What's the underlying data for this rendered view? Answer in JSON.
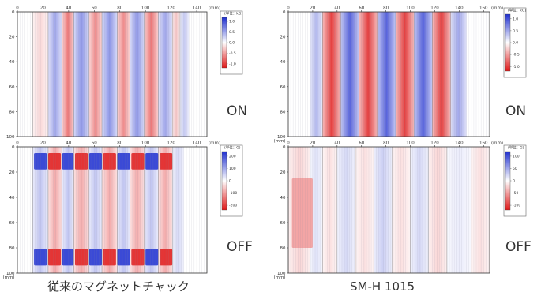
{
  "chart_data": [
    {
      "id": "conv-on",
      "type": "heatmap",
      "description": "stripe map, conventional chuck ON",
      "xticks": [
        0,
        20,
        40,
        60,
        80,
        100,
        120,
        140
      ],
      "x_unit_label": "(mm)",
      "yticks": [
        0,
        20,
        40,
        60,
        80,
        100
      ],
      "xlim": [
        0,
        148
      ],
      "ylim": [
        0,
        100
      ],
      "colorbar": {
        "title": "(単位：kG)",
        "ticks": [
          "1.0",
          "0.5",
          "0.0",
          "-0.5",
          "-1.0"
        ],
        "range": [
          -1.2,
          1.2
        ]
      },
      "stripes": [
        {
          "x0": 12,
          "x1": 24,
          "value": -0.2
        },
        {
          "x0": 24,
          "x1": 35,
          "value": 0.5
        },
        {
          "x0": 35,
          "x1": 44,
          "value": -0.7
        },
        {
          "x0": 44,
          "x1": 56,
          "value": 0.6
        },
        {
          "x0": 56,
          "x1": 66,
          "value": -0.6
        },
        {
          "x0": 66,
          "x1": 78,
          "value": 0.6
        },
        {
          "x0": 78,
          "x1": 88,
          "value": -0.6
        },
        {
          "x0": 88,
          "x1": 99,
          "value": 0.6
        },
        {
          "x0": 99,
          "x1": 110,
          "value": -0.7
        },
        {
          "x0": 110,
          "x1": 121,
          "value": 0.5
        },
        {
          "x0": 121,
          "x1": 127,
          "value": -0.3
        },
        {
          "x0": 127,
          "x1": 134,
          "value": 0.3
        }
      ],
      "patches": []
    },
    {
      "id": "smh-on",
      "type": "heatmap",
      "description": "stripe map, SM-H 1015 ON",
      "xticks": [
        0,
        20,
        40,
        60,
        80,
        100,
        120,
        140,
        160
      ],
      "x_unit_label": "(mm)",
      "yticks": [
        0,
        20,
        40,
        60,
        80,
        100
      ],
      "y_unit_label": "(mm)",
      "xlim": [
        0,
        165
      ],
      "ylim": [
        0,
        100
      ],
      "colorbar": {
        "title": "(単位：kG)",
        "ticks": [
          "1.0",
          "0.5",
          "0.0",
          "-0.5",
          "-1.0"
        ],
        "range": [
          -1.2,
          1.2
        ]
      },
      "stripes": [
        {
          "x0": 18,
          "x1": 28,
          "value": 0.4
        },
        {
          "x0": 28,
          "x1": 43,
          "value": -1.0
        },
        {
          "x0": 43,
          "x1": 58,
          "value": 0.9
        },
        {
          "x0": 58,
          "x1": 73,
          "value": -1.0
        },
        {
          "x0": 73,
          "x1": 88,
          "value": 0.9
        },
        {
          "x0": 88,
          "x1": 103,
          "value": -1.0
        },
        {
          "x0": 103,
          "x1": 118,
          "value": 0.9
        },
        {
          "x0": 118,
          "x1": 133,
          "value": -1.0
        },
        {
          "x0": 133,
          "x1": 146,
          "value": 0.5
        }
      ],
      "patches": []
    },
    {
      "id": "conv-off",
      "type": "heatmap",
      "description": "residual map, conventional chuck OFF",
      "xticks": [
        0,
        20,
        40,
        60,
        80,
        100,
        120,
        140
      ],
      "x_unit_label": "(mm)",
      "yticks": [
        0,
        20,
        40,
        60,
        80,
        100
      ],
      "y_unit_label": "(mm)",
      "xlim": [
        0,
        148
      ],
      "ylim": [
        0,
        100
      ],
      "colorbar": {
        "title": "(単位：G)",
        "ticks": [
          "200",
          "100",
          "0",
          "-100",
          "-200"
        ],
        "range": [
          -220,
          220
        ]
      },
      "stripes": [
        {
          "x0": 12,
          "x1": 24,
          "value": 60
        },
        {
          "x0": 24,
          "x1": 35,
          "value": -80
        },
        {
          "x0": 35,
          "x1": 44,
          "value": 60
        },
        {
          "x0": 44,
          "x1": 56,
          "value": -80
        },
        {
          "x0": 56,
          "x1": 66,
          "value": 60
        },
        {
          "x0": 66,
          "x1": 78,
          "value": -80
        },
        {
          "x0": 78,
          "x1": 88,
          "value": 60
        },
        {
          "x0": 88,
          "x1": 99,
          "value": -80
        },
        {
          "x0": 99,
          "x1": 110,
          "value": 60
        },
        {
          "x0": 110,
          "x1": 121,
          "value": -80
        },
        {
          "x0": 121,
          "x1": 130,
          "value": 40
        }
      ],
      "patches": [
        {
          "x0": 13,
          "x1": 23,
          "y0": 5,
          "y1": 18,
          "value": 200
        },
        {
          "x0": 24,
          "x1": 34,
          "y0": 5,
          "y1": 18,
          "value": -200
        },
        {
          "x0": 35,
          "x1": 44,
          "y0": 5,
          "y1": 18,
          "value": 200
        },
        {
          "x0": 45,
          "x1": 55,
          "y0": 5,
          "y1": 18,
          "value": -200
        },
        {
          "x0": 56,
          "x1": 66,
          "y0": 5,
          "y1": 18,
          "value": 200
        },
        {
          "x0": 67,
          "x1": 77,
          "y0": 5,
          "y1": 18,
          "value": -200
        },
        {
          "x0": 78,
          "x1": 88,
          "y0": 5,
          "y1": 18,
          "value": 200
        },
        {
          "x0": 89,
          "x1": 99,
          "y0": 5,
          "y1": 18,
          "value": -200
        },
        {
          "x0": 100,
          "x1": 110,
          "y0": 5,
          "y1": 18,
          "value": 200
        },
        {
          "x0": 111,
          "x1": 121,
          "y0": 5,
          "y1": 18,
          "value": -200
        },
        {
          "x0": 13,
          "x1": 23,
          "y0": 81,
          "y1": 94,
          "value": 200
        },
        {
          "x0": 24,
          "x1": 34,
          "y0": 81,
          "y1": 94,
          "value": -200
        },
        {
          "x0": 35,
          "x1": 44,
          "y0": 81,
          "y1": 94,
          "value": 200
        },
        {
          "x0": 45,
          "x1": 55,
          "y0": 81,
          "y1": 94,
          "value": -200
        },
        {
          "x0": 56,
          "x1": 66,
          "y0": 81,
          "y1": 94,
          "value": 200
        },
        {
          "x0": 67,
          "x1": 77,
          "y0": 81,
          "y1": 94,
          "value": -200
        },
        {
          "x0": 78,
          "x1": 88,
          "y0": 81,
          "y1": 94,
          "value": 200
        },
        {
          "x0": 89,
          "x1": 99,
          "y0": 81,
          "y1": 94,
          "value": -200
        },
        {
          "x0": 100,
          "x1": 110,
          "y0": 81,
          "y1": 94,
          "value": 200
        },
        {
          "x0": 111,
          "x1": 121,
          "y0": 81,
          "y1": 94,
          "value": -200
        }
      ]
    },
    {
      "id": "smh-off",
      "type": "heatmap",
      "description": "residual map, SM-H 1015 OFF",
      "xticks": [
        0,
        20,
        40,
        60,
        80,
        100,
        120,
        140,
        160
      ],
      "x_unit_label": "(mm)",
      "yticks": [
        0,
        20,
        40,
        60,
        80,
        100
      ],
      "y_unit_label": "(mm)",
      "xlim": [
        0,
        165
      ],
      "ylim": [
        0,
        100
      ],
      "colorbar": {
        "title": "(単位：G)",
        "ticks": [
          "100",
          "50",
          "0",
          "-50",
          "-100"
        ],
        "range": [
          -110,
          110
        ]
      },
      "stripes": [
        {
          "x0": 0,
          "x1": 18,
          "value": -20
        },
        {
          "x0": 18,
          "x1": 28,
          "value": 15
        },
        {
          "x0": 28,
          "x1": 40,
          "value": -15
        },
        {
          "x0": 40,
          "x1": 55,
          "value": 20
        },
        {
          "x0": 55,
          "x1": 70,
          "value": -15
        },
        {
          "x0": 70,
          "x1": 85,
          "value": 25
        },
        {
          "x0": 85,
          "x1": 100,
          "value": -15
        },
        {
          "x0": 100,
          "x1": 115,
          "value": 20
        },
        {
          "x0": 115,
          "x1": 130,
          "value": -20
        },
        {
          "x0": 130,
          "x1": 150,
          "value": 10
        },
        {
          "x0": 150,
          "x1": 165,
          "value": -15
        }
      ],
      "patches": [
        {
          "x0": 3,
          "x1": 20,
          "y0": 25,
          "y1": 80,
          "value": -45
        }
      ]
    }
  ],
  "labels": {
    "on_left": "ON",
    "off_left": "OFF",
    "on_right": "ON",
    "off_right": "OFF"
  },
  "captions": {
    "left": "従来のマグネットチャック",
    "right": "SM-H  1015"
  },
  "colors": {
    "positive": "#1f2fd0",
    "negative": "#e01818",
    "neutral": "#ffffff"
  }
}
